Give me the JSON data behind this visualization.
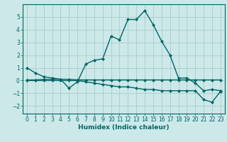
{
  "title": "",
  "xlabel": "Humidex (Indice chaleur)",
  "ylabel": "",
  "bg_color": "#cce8e8",
  "grid_color": "#aacccc",
  "line_color": "#006666",
  "xlim": [
    -0.5,
    23.5
  ],
  "ylim": [
    -2.6,
    6.0
  ],
  "yticks": [
    -2,
    -1,
    0,
    1,
    2,
    3,
    4,
    5
  ],
  "xticks": [
    0,
    1,
    2,
    3,
    4,
    5,
    6,
    7,
    8,
    9,
    10,
    11,
    12,
    13,
    14,
    15,
    16,
    17,
    18,
    19,
    20,
    21,
    22,
    23
  ],
  "series1_x": [
    0,
    1,
    2,
    3,
    4,
    5,
    6,
    7,
    8,
    9,
    10,
    11,
    12,
    13,
    14,
    15,
    16,
    17,
    18,
    19,
    20,
    21,
    22,
    23
  ],
  "series1_y": [
    1.0,
    0.6,
    0.3,
    0.2,
    0.1,
    -0.6,
    -0.1,
    1.3,
    1.6,
    1.7,
    3.5,
    3.2,
    4.8,
    4.8,
    5.5,
    4.4,
    3.1,
    2.0,
    0.2,
    0.2,
    -0.2,
    -0.8,
    -0.7,
    -0.8
  ],
  "series2_x": [
    0,
    1,
    2,
    3,
    4,
    5,
    6,
    7,
    8,
    9,
    10,
    11,
    12,
    13,
    14,
    15,
    16,
    17,
    18,
    19,
    20,
    21,
    22,
    23
  ],
  "series2_y": [
    0.05,
    0.05,
    0.1,
    0.1,
    0.1,
    0.1,
    0.05,
    0.05,
    0.05,
    0.05,
    0.05,
    0.05,
    0.05,
    0.05,
    0.05,
    0.05,
    0.05,
    0.05,
    0.05,
    0.05,
    0.05,
    0.05,
    0.05,
    0.05
  ],
  "series3_x": [
    0,
    1,
    2,
    3,
    4,
    5,
    6,
    7,
    8,
    9,
    10,
    11,
    12,
    13,
    14,
    15,
    16,
    17,
    18,
    19,
    20,
    21,
    22,
    23
  ],
  "series3_y": [
    0.0,
    0.0,
    0.0,
    0.0,
    0.0,
    0.0,
    0.0,
    -0.1,
    -0.2,
    -0.3,
    -0.4,
    -0.5,
    -0.5,
    -0.6,
    -0.7,
    -0.7,
    -0.8,
    -0.8,
    -0.8,
    -0.8,
    -0.8,
    -1.5,
    -1.7,
    -0.85
  ],
  "tick_fontsize": 5.5,
  "xlabel_fontsize": 6.5,
  "marker_size": 2.5,
  "linewidth": 1.0
}
